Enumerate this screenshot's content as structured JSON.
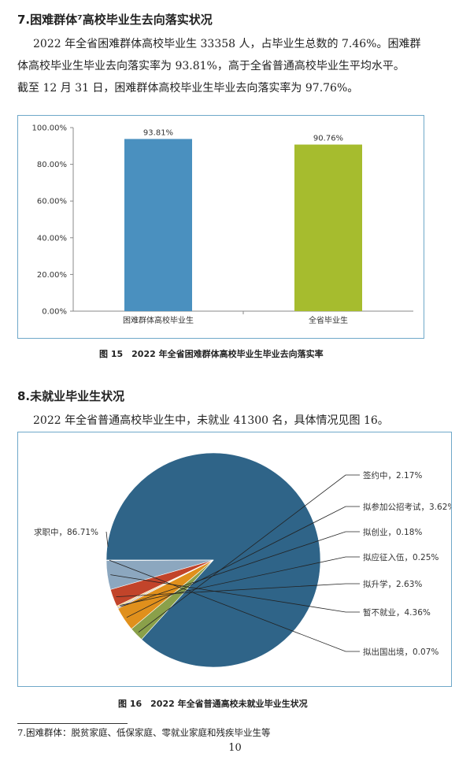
{
  "section7": {
    "heading": "7.困难群体⁷高校毕业生去向落实状况",
    "para_lines": [
      "2022 年全省困难群体高校毕业生 33358 人，占毕业生总数的 7.46%。困难群",
      "体高校毕业生毕业去向落实率为 93.81%，高于全省普通高校毕业生平均水平。",
      "截至 12 月 31 日，困难群体高校毕业生毕业去向落实率为 97.76%。"
    ]
  },
  "figure15": {
    "caption": "图 15　2022 年全省困难群体高校毕业生毕业去向落实率"
  },
  "section8": {
    "heading": "8.未就业毕业生状况",
    "para": "2022 年全省普通高校毕业生中，未就业 41300 名，具体情况见图 16。"
  },
  "figure16": {
    "caption": "图 16　2022 年全省普通高校未就业毕业生状况"
  },
  "footnote": "7.困难群体：脱贫家庭、低保家庭、零就业家庭和残疾毕业生等",
  "page_number": "10",
  "chart_data": [
    {
      "type": "bar",
      "categories": [
        "困难群体高校毕业生",
        "全省毕业生"
      ],
      "values": [
        93.81,
        90.76
      ],
      "data_labels": [
        "93.81%",
        "90.76%"
      ],
      "colors": [
        "#4a90bf",
        "#a6bc2e"
      ],
      "ylim": [
        0,
        100
      ],
      "yticks": [
        0,
        20,
        40,
        60,
        80,
        100
      ],
      "ytick_labels": [
        "0.00%",
        "20.00%",
        "40.00%",
        "60.00%",
        "80.00%",
        "100.00%"
      ],
      "grid": false,
      "title": ""
    },
    {
      "type": "pie",
      "slices": [
        {
          "label": "求职中",
          "value": 86.71,
          "text": "求职中，86.71%",
          "color": "#2f6488"
        },
        {
          "label": "签约中",
          "value": 2.17,
          "text": "签约中，2.17%",
          "color": "#8aa04a"
        },
        {
          "label": "拟参加公招考试",
          "value": 3.62,
          "text": "拟参加公招考试，3.62%",
          "color": "#e0901c"
        },
        {
          "label": "拟创业",
          "value": 0.18,
          "text": "拟创业，0.18%",
          "color": "#9c8fb2"
        },
        {
          "label": "拟应征入伍",
          "value": 0.25,
          "text": "拟应征入伍，0.25%",
          "color": "#f0d080"
        },
        {
          "label": "拟升学",
          "value": 2.63,
          "text": "拟升学，2.63%",
          "color": "#c2442a"
        },
        {
          "label": "暂不就业",
          "value": 4.36,
          "text": "暂不就业，4.36%",
          "color": "#8ca7bf"
        },
        {
          "label": "拟出国出境",
          "value": 0.07,
          "text": "拟出国出境，0.07%",
          "color": "#6f6f6f"
        }
      ],
      "title": ""
    }
  ]
}
